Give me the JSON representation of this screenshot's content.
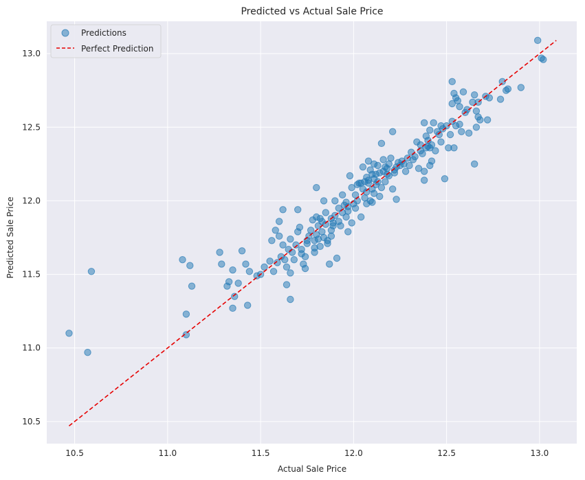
{
  "chart_data": {
    "type": "scatter",
    "title": "Predicted vs Actual Sale Price",
    "xlabel": "Actual Sale Price",
    "ylabel": "Predicted Sale Price",
    "xlim": [
      10.35,
      13.2
    ],
    "ylim": [
      10.35,
      13.22
    ],
    "xticks": [
      "10.5",
      "11.0",
      "11.5",
      "12.0",
      "12.5",
      "13.0"
    ],
    "yticks": [
      "10.5",
      "11.0",
      "11.5",
      "12.0",
      "12.5",
      "13.0"
    ],
    "grid": true,
    "legend_position": "top-left",
    "series": [
      {
        "name": "Predictions",
        "kind": "scatter",
        "color": "#1f77b4",
        "points": [
          [
            10.47,
            11.1
          ],
          [
            10.57,
            10.97
          ],
          [
            10.59,
            11.52
          ],
          [
            11.08,
            11.6
          ],
          [
            11.1,
            11.23
          ],
          [
            11.1,
            11.09
          ],
          [
            11.12,
            11.56
          ],
          [
            11.13,
            11.42
          ],
          [
            11.28,
            11.65
          ],
          [
            11.29,
            11.57
          ],
          [
            11.32,
            11.42
          ],
          [
            11.33,
            11.45
          ],
          [
            11.35,
            11.53
          ],
          [
            11.35,
            11.27
          ],
          [
            11.36,
            11.35
          ],
          [
            11.38,
            11.44
          ],
          [
            11.4,
            11.66
          ],
          [
            11.42,
            11.57
          ],
          [
            11.43,
            11.29
          ],
          [
            11.44,
            11.52
          ],
          [
            11.48,
            11.49
          ],
          [
            11.5,
            11.5
          ],
          [
            11.52,
            11.55
          ],
          [
            11.55,
            11.59
          ],
          [
            11.56,
            11.73
          ],
          [
            11.57,
            11.52
          ],
          [
            11.58,
            11.8
          ],
          [
            11.59,
            11.58
          ],
          [
            11.6,
            11.86
          ],
          [
            11.6,
            11.76
          ],
          [
            11.61,
            11.62
          ],
          [
            11.62,
            11.7
          ],
          [
            11.62,
            11.94
          ],
          [
            11.63,
            11.6
          ],
          [
            11.64,
            11.55
          ],
          [
            11.64,
            11.43
          ],
          [
            11.65,
            11.67
          ],
          [
            11.66,
            11.74
          ],
          [
            11.66,
            11.51
          ],
          [
            11.66,
            11.33
          ],
          [
            11.67,
            11.65
          ],
          [
            11.68,
            11.6
          ],
          [
            11.69,
            11.7
          ],
          [
            11.7,
            11.94
          ],
          [
            11.7,
            11.79
          ],
          [
            11.71,
            11.82
          ],
          [
            11.72,
            11.67
          ],
          [
            11.72,
            11.64
          ],
          [
            11.73,
            11.57
          ],
          [
            11.74,
            11.62
          ],
          [
            11.74,
            11.54
          ],
          [
            11.75,
            11.73
          ],
          [
            11.75,
            11.71
          ],
          [
            11.76,
            11.76
          ],
          [
            11.77,
            11.8
          ],
          [
            11.78,
            11.87
          ],
          [
            11.79,
            11.73
          ],
          [
            11.79,
            11.68
          ],
          [
            11.79,
            11.65
          ],
          [
            11.8,
            12.09
          ],
          [
            11.8,
            11.89
          ],
          [
            11.8,
            11.77
          ],
          [
            11.81,
            11.83
          ],
          [
            11.81,
            11.74
          ],
          [
            11.82,
            11.88
          ],
          [
            11.82,
            11.69
          ],
          [
            11.83,
            11.86
          ],
          [
            11.83,
            11.79
          ],
          [
            11.84,
            12.0
          ],
          [
            11.84,
            11.75
          ],
          [
            11.85,
            11.92
          ],
          [
            11.85,
            11.84
          ],
          [
            11.86,
            11.73
          ],
          [
            11.86,
            11.71
          ],
          [
            11.87,
            11.57
          ],
          [
            11.88,
            11.88
          ],
          [
            11.88,
            11.8
          ],
          [
            11.88,
            11.76
          ],
          [
            11.89,
            11.85
          ],
          [
            11.89,
            11.83
          ],
          [
            11.9,
            12.0
          ],
          [
            11.9,
            11.9
          ],
          [
            11.91,
            11.61
          ],
          [
            11.92,
            11.95
          ],
          [
            11.92,
            11.86
          ],
          [
            11.93,
            11.83
          ],
          [
            11.94,
            12.04
          ],
          [
            11.94,
            11.92
          ],
          [
            11.95,
            11.97
          ],
          [
            11.96,
            11.89
          ],
          [
            11.96,
            11.99
          ],
          [
            11.97,
            11.96
          ],
          [
            11.97,
            11.93
          ],
          [
            11.97,
            11.79
          ],
          [
            11.98,
            12.17
          ],
          [
            11.99,
            12.09
          ],
          [
            11.99,
            11.85
          ],
          [
            12.0,
            11.98
          ],
          [
            12.01,
            12.04
          ],
          [
            12.01,
            11.95
          ],
          [
            12.02,
            12.11
          ],
          [
            12.02,
            12.0
          ],
          [
            12.03,
            12.12
          ],
          [
            12.04,
            11.89
          ],
          [
            12.04,
            12.12
          ],
          [
            12.05,
            12.08
          ],
          [
            12.05,
            12.23
          ],
          [
            12.06,
            12.13
          ],
          [
            12.06,
            12.02
          ],
          [
            12.07,
            12.16
          ],
          [
            12.07,
            12.06
          ],
          [
            12.07,
            11.98
          ],
          [
            12.08,
            12.14
          ],
          [
            12.08,
            12.27
          ],
          [
            12.08,
            12.12
          ],
          [
            12.09,
            12.0
          ],
          [
            12.09,
            12.21
          ],
          [
            12.1,
            12.18
          ],
          [
            12.1,
            12.08
          ],
          [
            12.1,
            11.99
          ],
          [
            12.11,
            12.25
          ],
          [
            12.11,
            12.15
          ],
          [
            12.11,
            12.05
          ],
          [
            12.12,
            12.11
          ],
          [
            12.12,
            12.18
          ],
          [
            12.13,
            12.24
          ],
          [
            12.13,
            12.13
          ],
          [
            12.14,
            12.19
          ],
          [
            12.14,
            12.03
          ],
          [
            12.15,
            12.39
          ],
          [
            12.15,
            12.09
          ],
          [
            12.16,
            12.2
          ],
          [
            12.16,
            12.28
          ],
          [
            12.17,
            12.23
          ],
          [
            12.17,
            12.13
          ],
          [
            12.18,
            12.22
          ],
          [
            12.18,
            12.18
          ],
          [
            12.19,
            12.25
          ],
          [
            12.19,
            12.17
          ],
          [
            12.2,
            12.29
          ],
          [
            12.21,
            12.47
          ],
          [
            12.21,
            12.08
          ],
          [
            12.22,
            12.21
          ],
          [
            12.22,
            12.19
          ],
          [
            12.23,
            12.23
          ],
          [
            12.23,
            12.01
          ],
          [
            12.24,
            12.26
          ],
          [
            12.25,
            12.24
          ],
          [
            12.26,
            12.27
          ],
          [
            12.27,
            12.25
          ],
          [
            12.28,
            12.2
          ],
          [
            12.29,
            12.29
          ],
          [
            12.3,
            12.24
          ],
          [
            12.31,
            12.33
          ],
          [
            12.32,
            12.28
          ],
          [
            12.33,
            12.3
          ],
          [
            12.34,
            12.4
          ],
          [
            12.35,
            12.22
          ],
          [
            12.36,
            12.34
          ],
          [
            12.36,
            12.38
          ],
          [
            12.37,
            12.32
          ],
          [
            12.38,
            12.53
          ],
          [
            12.38,
            12.2
          ],
          [
            12.38,
            12.14
          ],
          [
            12.39,
            12.36
          ],
          [
            12.39,
            12.44
          ],
          [
            12.4,
            12.41
          ],
          [
            12.4,
            12.37
          ],
          [
            12.41,
            12.48
          ],
          [
            12.41,
            12.36
          ],
          [
            12.41,
            12.24
          ],
          [
            12.42,
            12.38
          ],
          [
            12.42,
            12.27
          ],
          [
            12.43,
            12.53
          ],
          [
            12.44,
            12.34
          ],
          [
            12.45,
            12.47
          ],
          [
            12.46,
            12.45
          ],
          [
            12.47,
            12.51
          ],
          [
            12.47,
            12.4
          ],
          [
            12.48,
            12.49
          ],
          [
            12.49,
            12.15
          ],
          [
            12.5,
            12.51
          ],
          [
            12.51,
            12.36
          ],
          [
            12.52,
            12.45
          ],
          [
            12.53,
            12.81
          ],
          [
            12.53,
            12.66
          ],
          [
            12.53,
            12.54
          ],
          [
            12.54,
            12.36
          ],
          [
            12.54,
            12.73
          ],
          [
            12.55,
            12.7
          ],
          [
            12.55,
            12.51
          ],
          [
            12.56,
            12.68
          ],
          [
            12.57,
            12.64
          ],
          [
            12.57,
            12.52
          ],
          [
            12.58,
            12.47
          ],
          [
            12.59,
            12.74
          ],
          [
            12.6,
            12.6
          ],
          [
            12.61,
            12.62
          ],
          [
            12.62,
            12.46
          ],
          [
            12.64,
            12.67
          ],
          [
            12.65,
            12.72
          ],
          [
            12.65,
            12.25
          ],
          [
            12.66,
            12.61
          ],
          [
            12.66,
            12.5
          ],
          [
            12.67,
            12.57
          ],
          [
            12.67,
            12.67
          ],
          [
            12.68,
            12.55
          ],
          [
            12.71,
            12.71
          ],
          [
            12.72,
            12.55
          ],
          [
            12.73,
            12.7
          ],
          [
            12.79,
            12.69
          ],
          [
            12.8,
            12.81
          ],
          [
            12.82,
            12.75
          ],
          [
            12.83,
            12.76
          ],
          [
            12.9,
            12.77
          ],
          [
            12.99,
            13.09
          ],
          [
            13.01,
            12.97
          ],
          [
            13.02,
            12.96
          ]
        ]
      },
      {
        "name": "Perfect Prediction",
        "kind": "line",
        "color": "#e60000",
        "dash": "dashed",
        "points": [
          [
            10.47,
            10.47
          ],
          [
            13.09,
            13.09
          ]
        ]
      }
    ]
  }
}
